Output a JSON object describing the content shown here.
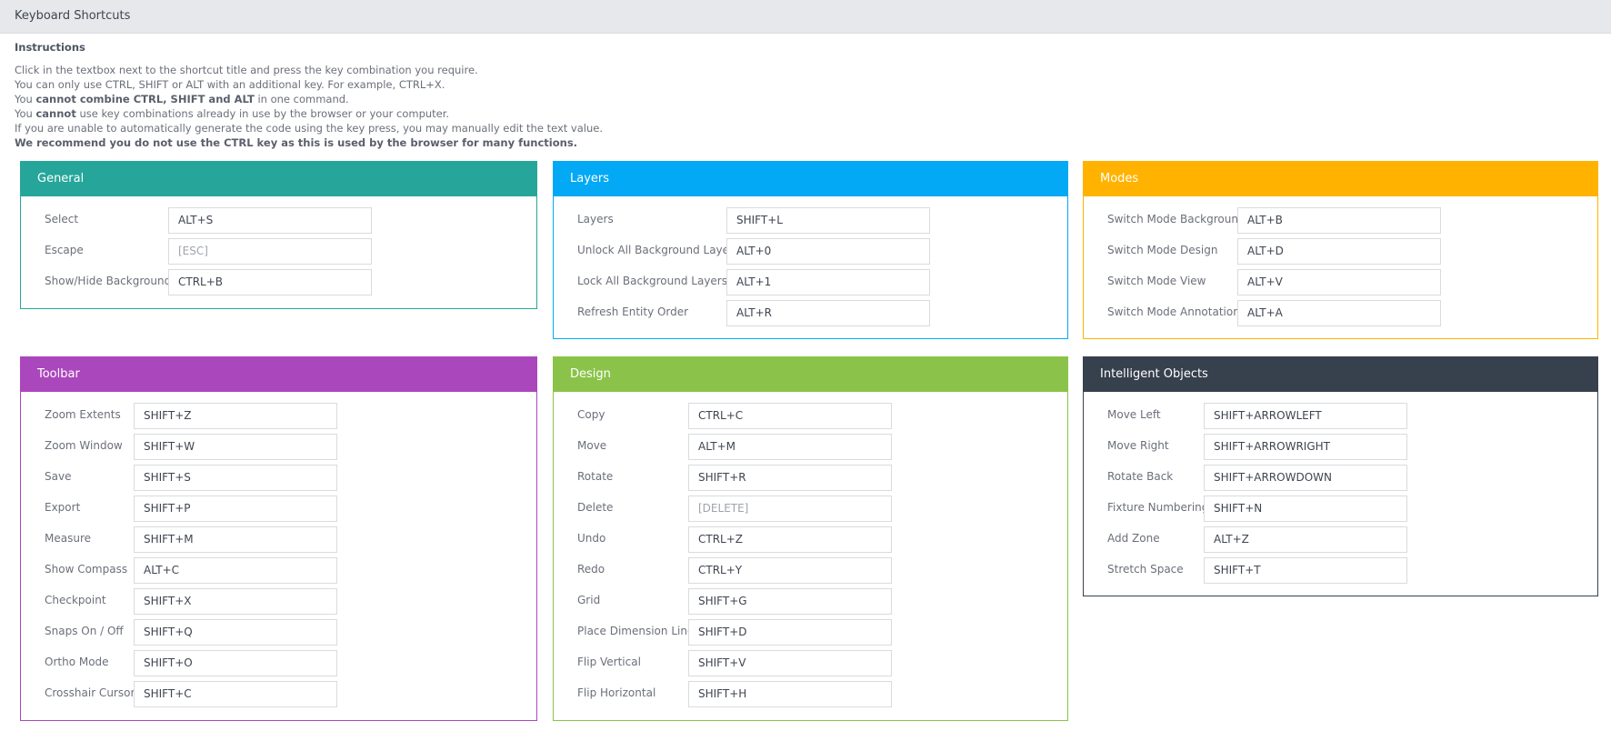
{
  "window": {
    "title": "Keyboard Shortcuts"
  },
  "instructions": {
    "heading": "Instructions",
    "lines": [
      [
        {
          "t": "Click in the textbox next to the shortcut title and press the key combination you require.",
          "b": false
        }
      ],
      [
        {
          "t": "You can only use CTRL, SHIFT or ALT with an additional key. For example, CTRL+X.",
          "b": false
        }
      ],
      [
        {
          "t": "You ",
          "b": false
        },
        {
          "t": "cannot combine CTRL, SHIFT and ALT",
          "b": true
        },
        {
          "t": " in one command.",
          "b": false
        }
      ],
      [
        {
          "t": "You ",
          "b": false
        },
        {
          "t": "cannot",
          "b": true
        },
        {
          "t": " use key combinations already in use by the browser or your computer.",
          "b": false
        }
      ],
      [
        {
          "t": "If you are unable to automatically generate the code using the key press, you may manually edit the text value.",
          "b": false
        }
      ],
      [
        {
          "t": "We recommend you do not use the CTRL key as this is used by the browser for many functions.",
          "b": true
        }
      ]
    ]
  },
  "colors": {
    "general": "#26a69a",
    "layers": "#03a9f4",
    "modes": "#ffb300",
    "toolbar": "#ab47bc",
    "design": "#8bc34a",
    "intelligent_objects": "#37404d"
  },
  "panels": [
    {
      "key": "general",
      "title": "General",
      "shortcuts": [
        {
          "label": "Select",
          "value": "ALT+S",
          "placeholder": false
        },
        {
          "label": "Escape",
          "value": "[ESC]",
          "placeholder": true
        },
        {
          "label": "Show/Hide Background",
          "value": "CTRL+B",
          "placeholder": false
        }
      ]
    },
    {
      "key": "layers",
      "title": "Layers",
      "shortcuts": [
        {
          "label": "Layers",
          "value": "SHIFT+L",
          "placeholder": false
        },
        {
          "label": "Unlock All Background Layers",
          "value": "ALT+0",
          "placeholder": false
        },
        {
          "label": "Lock All Background Layers",
          "value": "ALT+1",
          "placeholder": false
        },
        {
          "label": "Refresh Entity Order",
          "value": "ALT+R",
          "placeholder": false
        }
      ]
    },
    {
      "key": "modes",
      "title": "Modes",
      "shortcuts": [
        {
          "label": "Switch Mode Background",
          "value": "ALT+B",
          "placeholder": false
        },
        {
          "label": "Switch Mode Design",
          "value": "ALT+D",
          "placeholder": false
        },
        {
          "label": "Switch Mode View",
          "value": "ALT+V",
          "placeholder": false
        },
        {
          "label": "Switch Mode Annotation",
          "value": "ALT+A",
          "placeholder": false
        }
      ]
    },
    {
      "key": "toolbar",
      "title": "Toolbar",
      "shortcuts": [
        {
          "label": "Zoom Extents",
          "value": "SHIFT+Z",
          "placeholder": false
        },
        {
          "label": "Zoom Window",
          "value": "SHIFT+W",
          "placeholder": false
        },
        {
          "label": "Save",
          "value": "SHIFT+S",
          "placeholder": false
        },
        {
          "label": "Export",
          "value": "SHIFT+P",
          "placeholder": false
        },
        {
          "label": "Measure",
          "value": "SHIFT+M",
          "placeholder": false
        },
        {
          "label": "Show Compass",
          "value": "ALT+C",
          "placeholder": false
        },
        {
          "label": "Checkpoint",
          "value": "SHIFT+X",
          "placeholder": false
        },
        {
          "label": "Snaps On / Off",
          "value": "SHIFT+Q",
          "placeholder": false
        },
        {
          "label": "Ortho Mode",
          "value": "SHIFT+O",
          "placeholder": false
        },
        {
          "label": "Crosshair Cursor",
          "value": "SHIFT+C",
          "placeholder": false
        }
      ]
    },
    {
      "key": "design",
      "title": "Design",
      "shortcuts": [
        {
          "label": "Copy",
          "value": "CTRL+C",
          "placeholder": false
        },
        {
          "label": "Move",
          "value": "ALT+M",
          "placeholder": false
        },
        {
          "label": "Rotate",
          "value": "SHIFT+R",
          "placeholder": false
        },
        {
          "label": "Delete",
          "value": "[DELETE]",
          "placeholder": true
        },
        {
          "label": "Undo",
          "value": "CTRL+Z",
          "placeholder": false
        },
        {
          "label": "Redo",
          "value": "CTRL+Y",
          "placeholder": false
        },
        {
          "label": "Grid",
          "value": "SHIFT+G",
          "placeholder": false
        },
        {
          "label": "Place Dimension Line",
          "value": "SHIFT+D",
          "placeholder": false
        },
        {
          "label": "Flip Vertical",
          "value": "SHIFT+V",
          "placeholder": false
        },
        {
          "label": "Flip Horizontal",
          "value": "SHIFT+H",
          "placeholder": false
        }
      ]
    },
    {
      "key": "intelligent_objects",
      "title": "Intelligent Objects",
      "shortcuts": [
        {
          "label": "Move Left",
          "value": "SHIFT+ARROWLEFT",
          "placeholder": false
        },
        {
          "label": "Move Right",
          "value": "SHIFT+ARROWRIGHT",
          "placeholder": false
        },
        {
          "label": "Rotate Back",
          "value": "SHIFT+ARROWDOWN",
          "placeholder": false
        },
        {
          "label": "Fixture Numbering",
          "value": "SHIFT+N",
          "placeholder": false
        },
        {
          "label": "Add Zone",
          "value": "ALT+Z",
          "placeholder": false
        },
        {
          "label": "Stretch Space",
          "value": "SHIFT+T",
          "placeholder": false
        }
      ]
    }
  ]
}
